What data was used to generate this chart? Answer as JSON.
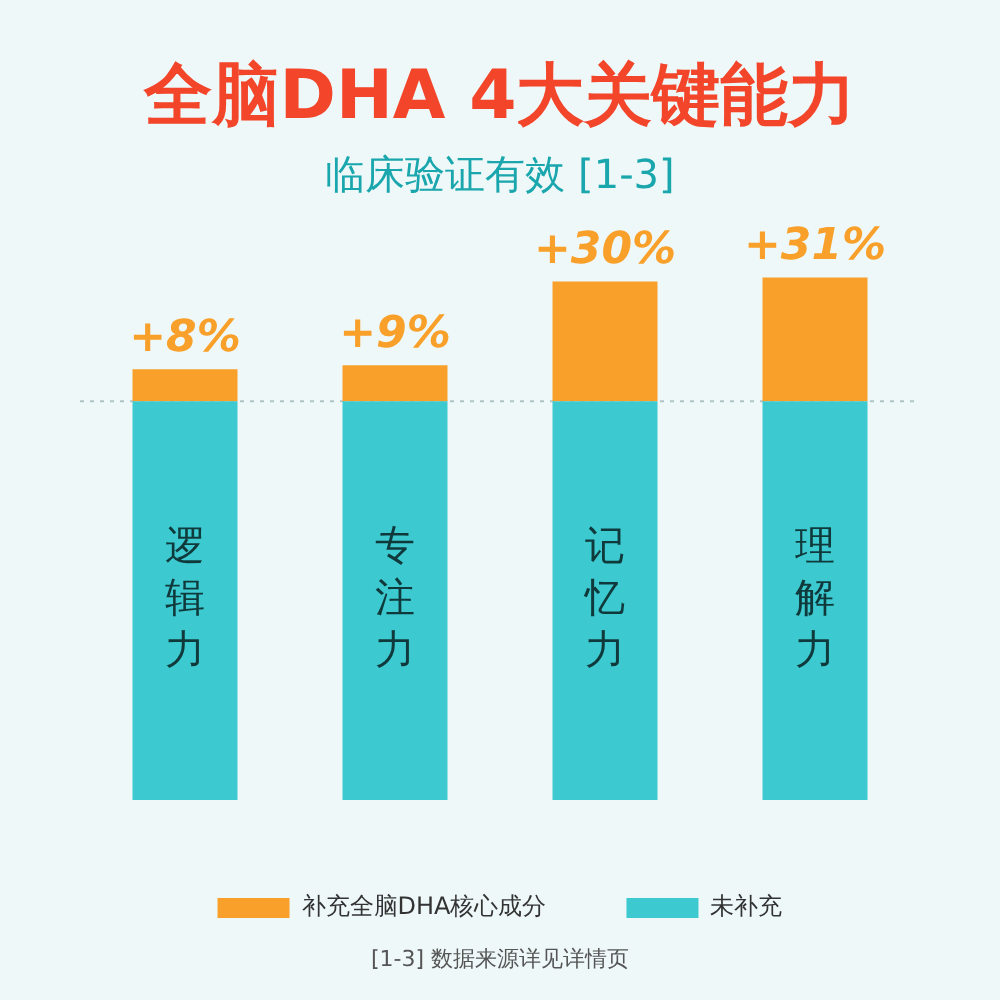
{
  "chart_data": {
    "type": "bar",
    "title": "全脑DHA 4大关键能力",
    "subtitle": "临床验证有效 [1-3]",
    "categories": [
      "逻辑力",
      "专注力",
      "记忆力",
      "理解力"
    ],
    "stacked": true,
    "tick_labels": false,
    "series": [
      {
        "name": "未补充",
        "color": "#3cc9cf",
        "values": [
          100,
          100,
          100,
          100
        ]
      },
      {
        "name": "补充全脑DHA核心成分",
        "color": "#f9a02a",
        "values": [
          8,
          9,
          30,
          31
        ],
        "value_labels": [
          "+8%",
          "+9%",
          "+30%",
          "+31%"
        ]
      }
    ],
    "ref_lines": [
      {
        "axis": "y",
        "value": 100,
        "color": "#b0c4c6",
        "line_style": "dotted"
      }
    ],
    "legend": "bottom",
    "grid": false,
    "annotations": [
      "[1-3] 数据来源详见详情页"
    ]
  }
}
